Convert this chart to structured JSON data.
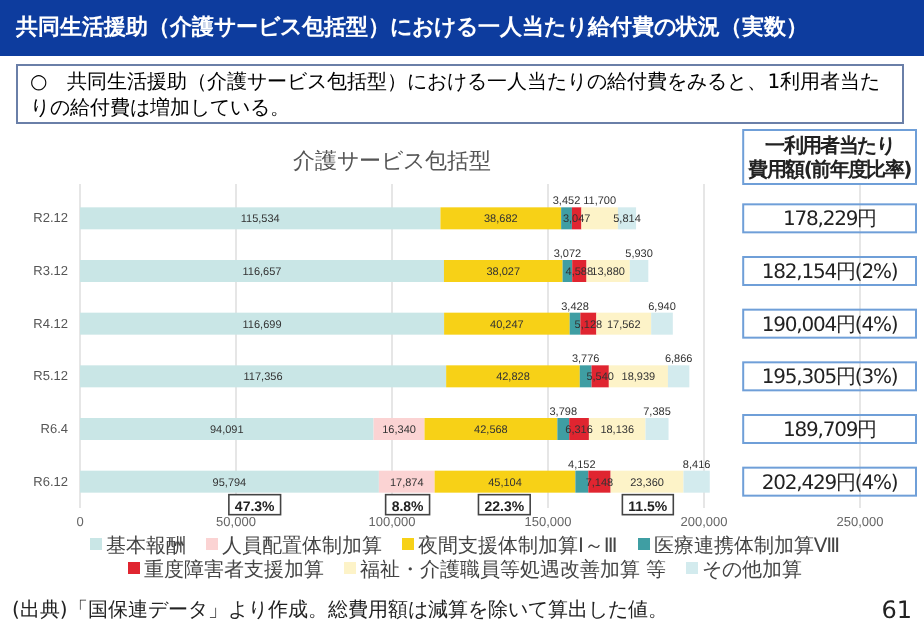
{
  "chart_data": {
    "type": "bar",
    "orientation": "horizontal",
    "stacked": true,
    "title": "共同生活援助（介護サービス包括型）における一人当たり給付費の状況（実数）",
    "subtitle": "○　共同生活援助（介護サービス包括型）における一人当たりの給付費をみると、1利用者当たりの給付費は増加している。",
    "categories": [
      "R2.12",
      "R3.12",
      "R4.12",
      "R5.12",
      "R6.4",
      "R6.12"
    ],
    "series": [
      {
        "name": "基本報酬",
        "color": "#c9e6e6",
        "values": [
          115534,
          116657,
          116699,
          117356,
          94091,
          95794
        ],
        "value_labels": [
          "115,534",
          "116,657",
          "116,699",
          "117,356",
          "94,091",
          "95,794"
        ]
      },
      {
        "name": "人員配置体制加算",
        "color": "#fbd3d3",
        "values": [
          null,
          null,
          null,
          null,
          16340,
          17874
        ],
        "value_labels": [
          null,
          null,
          null,
          null,
          "16,340",
          "17,874"
        ]
      },
      {
        "name": "夜間支援体制加算Ⅰ～Ⅲ",
        "color": "#f7d117",
        "values": [
          38682,
          38027,
          40247,
          42828,
          42568,
          45104
        ],
        "value_labels": [
          "38,682",
          "38,027",
          "40,247",
          "42,828",
          "42,568",
          "45,104"
        ]
      },
      {
        "name": "医療連携体制加算Ⅷ",
        "color": "#3f9ea3",
        "values": [
          3452,
          3072,
          3428,
          3776,
          3798,
          4152
        ],
        "value_labels": [
          "3,452",
          "3,072",
          "3,428",
          "3,776",
          "3,798",
          "4,152"
        ]
      },
      {
        "name": "重度障害者支援加算",
        "color": "#e02530",
        "values": [
          3047,
          4588,
          5128,
          5540,
          6316,
          7148
        ],
        "value_labels": [
          "3,047",
          "4,588",
          "5,128",
          "5,540",
          "6,316",
          "7,148"
        ]
      },
      {
        "name": "福祉・介護職員等処遇改善加算 等",
        "color": "#fdf3c8",
        "values": [
          11700,
          13880,
          17562,
          18939,
          18136,
          23360
        ],
        "value_labels": [
          "11,700",
          "13,880",
          "17,562",
          "18,939",
          "18,136",
          "23,360"
        ]
      },
      {
        "name": "その他加算",
        "color": "#d3ebee",
        "values": [
          5814,
          5930,
          6940,
          6866,
          7385,
          8416
        ],
        "value_labels": [
          "5,814",
          "5,930",
          "6,940",
          "6,866",
          "7,385",
          "8,416"
        ]
      }
    ],
    "xlim": [
      0,
      250000
    ],
    "xticks": [
      {
        "value": 0,
        "label": "0"
      },
      {
        "value": 50000,
        "label": "50,000"
      },
      {
        "value": 100000,
        "label": "100,000"
      },
      {
        "value": 150000,
        "label": "150,000"
      },
      {
        "value": 200000,
        "label": "200,000"
      },
      {
        "value": 250000,
        "label": "250,000"
      }
    ],
    "grid": "x",
    "legend": "bottom",
    "annotations": [
      "介護サービス包括型",
      "一利用者当たり",
      "費用額(前年度比率)",
      "(出典)「国保連データ」より作成。総費用額は減算を除いて算出した値。",
      "61",
      "178,229円",
      "182,154円(2%)",
      "190,004円(4%)",
      "195,305円(3%)",
      "189,709円",
      "202,429円(4%)",
      {
        "text": "47.3%",
        "x": 56000,
        "y": "R6.12"
      },
      {
        "text": "8.8%",
        "x": 105000,
        "y": "R6.12"
      },
      {
        "text": "22.3%",
        "x": 136000,
        "y": "R6.12"
      },
      {
        "text": "11.5%",
        "x": 182000,
        "y": "R6.12"
      }
    ]
  }
}
